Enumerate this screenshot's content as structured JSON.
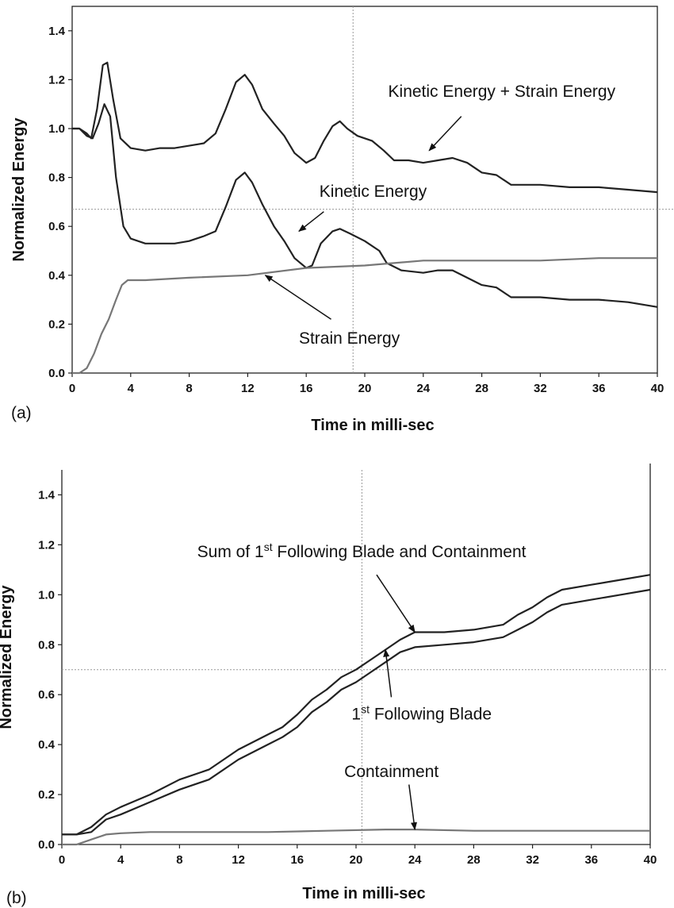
{
  "chart_data": [
    {
      "panel_label": "(a)",
      "type": "line",
      "xlabel": "Time in milli-sec",
      "ylabel": "Normalized Energy",
      "xlim": [
        0,
        40
      ],
      "ylim": [
        0,
        1.5
      ],
      "xticks": [
        "0",
        "4",
        "8",
        "12",
        "16",
        "20",
        "24",
        "28",
        "32",
        "36",
        "40"
      ],
      "yticks": [
        "0.0",
        "0.2",
        "0.4",
        "0.6",
        "0.8",
        "1.0",
        "1.2",
        "1.4"
      ],
      "grid": false,
      "ref_x": 19.2,
      "ref_y": 0.67,
      "annotations": [
        {
          "text": "Kinetic Energy + Strain Energy",
          "x": 21.6,
          "y": 1.13,
          "arrow_from": [
            26.6,
            1.05
          ],
          "arrow_to": [
            24.4,
            0.91
          ]
        },
        {
          "text": "Kinetic Energy",
          "x": 16.9,
          "y": 0.72,
          "arrow_from": [
            17.2,
            0.66
          ],
          "arrow_to": [
            15.5,
            0.58
          ]
        },
        {
          "text": "Strain Energy",
          "x": 15.5,
          "y": 0.12,
          "arrow_from": [
            17.7,
            0.22
          ],
          "arrow_to": [
            13.2,
            0.4
          ]
        }
      ],
      "series": [
        {
          "color": "#222222",
          "points": [
            [
              0,
              1.0
            ],
            [
              0.5,
              1.0
            ],
            [
              1,
              0.98
            ],
            [
              1.3,
              0.96
            ],
            [
              1.7,
              1.08
            ],
            [
              2.1,
              1.26
            ],
            [
              2.4,
              1.27
            ],
            [
              2.8,
              1.12
            ],
            [
              3.3,
              0.96
            ],
            [
              4,
              0.92
            ],
            [
              5,
              0.91
            ],
            [
              6,
              0.92
            ],
            [
              7,
              0.92
            ],
            [
              8,
              0.93
            ],
            [
              9,
              0.94
            ],
            [
              9.8,
              0.98
            ],
            [
              10.5,
              1.08
            ],
            [
              11.2,
              1.19
            ],
            [
              11.8,
              1.22
            ],
            [
              12.3,
              1.18
            ],
            [
              13,
              1.08
            ],
            [
              13.8,
              1.02
            ],
            [
              14.5,
              0.97
            ],
            [
              15.2,
              0.9
            ],
            [
              16,
              0.86
            ],
            [
              16.6,
              0.88
            ],
            [
              17.2,
              0.95
            ],
            [
              17.8,
              1.01
            ],
            [
              18.3,
              1.03
            ],
            [
              18.8,
              1.0
            ],
            [
              19.5,
              0.97
            ],
            [
              20.5,
              0.95
            ],
            [
              21.3,
              0.91
            ],
            [
              22,
              0.87
            ],
            [
              23,
              0.87
            ],
            [
              24,
              0.86
            ],
            [
              25,
              0.87
            ],
            [
              26,
              0.88
            ],
            [
              27,
              0.86
            ],
            [
              28,
              0.82
            ],
            [
              29,
              0.81
            ],
            [
              30,
              0.77
            ],
            [
              32,
              0.77
            ],
            [
              34,
              0.76
            ],
            [
              36,
              0.76
            ],
            [
              38,
              0.75
            ],
            [
              40,
              0.74
            ]
          ]
        },
        {
          "color": "#222222",
          "points": [
            [
              0,
              1.0
            ],
            [
              0.5,
              1.0
            ],
            [
              1,
              0.97
            ],
            [
              1.4,
              0.96
            ],
            [
              1.8,
              1.02
            ],
            [
              2.2,
              1.1
            ],
            [
              2.6,
              1.05
            ],
            [
              3,
              0.8
            ],
            [
              3.5,
              0.6
            ],
            [
              4,
              0.55
            ],
            [
              5,
              0.53
            ],
            [
              6,
              0.53
            ],
            [
              7,
              0.53
            ],
            [
              8,
              0.54
            ],
            [
              9,
              0.56
            ],
            [
              9.8,
              0.58
            ],
            [
              10.5,
              0.68
            ],
            [
              11.2,
              0.79
            ],
            [
              11.8,
              0.82
            ],
            [
              12.3,
              0.78
            ],
            [
              13,
              0.69
            ],
            [
              13.8,
              0.6
            ],
            [
              14.5,
              0.54
            ],
            [
              15.2,
              0.47
            ],
            [
              16,
              0.43
            ],
            [
              16.4,
              0.44
            ],
            [
              17,
              0.53
            ],
            [
              17.8,
              0.58
            ],
            [
              18.3,
              0.59
            ],
            [
              19,
              0.57
            ],
            [
              20,
              0.54
            ],
            [
              21,
              0.5
            ],
            [
              21.5,
              0.45
            ],
            [
              22.5,
              0.42
            ],
            [
              24,
              0.41
            ],
            [
              25,
              0.42
            ],
            [
              26,
              0.42
            ],
            [
              27,
              0.39
            ],
            [
              28,
              0.36
            ],
            [
              29,
              0.35
            ],
            [
              30,
              0.31
            ],
            [
              32,
              0.31
            ],
            [
              34,
              0.3
            ],
            [
              36,
              0.3
            ],
            [
              38,
              0.29
            ],
            [
              40,
              0.27
            ]
          ]
        },
        {
          "color": "#777777",
          "points": [
            [
              0,
              0.0
            ],
            [
              0.5,
              0.0
            ],
            [
              1,
              0.02
            ],
            [
              1.5,
              0.08
            ],
            [
              2,
              0.16
            ],
            [
              2.5,
              0.22
            ],
            [
              3,
              0.3
            ],
            [
              3.4,
              0.36
            ],
            [
              3.8,
              0.38
            ],
            [
              5,
              0.38
            ],
            [
              8,
              0.39
            ],
            [
              12,
              0.4
            ],
            [
              16,
              0.43
            ],
            [
              20,
              0.44
            ],
            [
              24,
              0.46
            ],
            [
              28,
              0.46
            ],
            [
              32,
              0.46
            ],
            [
              36,
              0.47
            ],
            [
              40,
              0.47
            ]
          ]
        }
      ]
    },
    {
      "panel_label": "(b)",
      "type": "line",
      "xlabel": "Time in milli-sec",
      "ylabel": "Normalized Energy",
      "xlim": [
        0,
        40
      ],
      "ylim": [
        0,
        1.5
      ],
      "xticks": [
        "0",
        "4",
        "8",
        "12",
        "16",
        "20",
        "24",
        "28",
        "32",
        "36",
        "40"
      ],
      "yticks": [
        "0.0",
        "0.2",
        "0.4",
        "0.6",
        "0.8",
        "1.0",
        "1.2",
        "1.4"
      ],
      "grid": false,
      "ref_x": 20.4,
      "ref_y": 0.7,
      "annotations": [
        {
          "text_main": "Sum of 1",
          "text_sup": "st",
          "text_tail": " Following Blade and Containment",
          "x": 9.2,
          "y": 1.15,
          "arrow_from": [
            21.4,
            1.08
          ],
          "arrow_to": [
            24.0,
            0.85
          ]
        },
        {
          "text_main": "1",
          "text_sup": "st",
          "text_tail": " Following Blade",
          "x": 19.7,
          "y": 0.5,
          "arrow_from": [
            22.4,
            0.59
          ],
          "arrow_to": [
            22.0,
            0.78
          ]
        },
        {
          "text_main": "Containment",
          "text_sup": "",
          "text_tail": "",
          "x": 19.2,
          "y": 0.27,
          "arrow_from": [
            23.6,
            0.24
          ],
          "arrow_to": [
            24.0,
            0.06
          ]
        }
      ],
      "series": [
        {
          "color": "#222222",
          "points": [
            [
              0,
              0.04
            ],
            [
              1,
              0.04
            ],
            [
              2,
              0.07
            ],
            [
              3,
              0.12
            ],
            [
              4,
              0.15
            ],
            [
              6,
              0.2
            ],
            [
              8,
              0.26
            ],
            [
              10,
              0.3
            ],
            [
              12,
              0.38
            ],
            [
              14,
              0.44
            ],
            [
              15,
              0.47
            ],
            [
              16,
              0.52
            ],
            [
              17,
              0.58
            ],
            [
              18,
              0.62
            ],
            [
              19,
              0.67
            ],
            [
              20,
              0.7
            ],
            [
              21,
              0.74
            ],
            [
              22,
              0.78
            ],
            [
              23,
              0.82
            ],
            [
              24,
              0.85
            ],
            [
              26,
              0.85
            ],
            [
              28,
              0.86
            ],
            [
              30,
              0.88
            ],
            [
              31,
              0.92
            ],
            [
              32,
              0.95
            ],
            [
              33,
              0.99
            ],
            [
              34,
              1.02
            ],
            [
              36,
              1.04
            ],
            [
              38,
              1.06
            ],
            [
              40,
              1.08
            ]
          ]
        },
        {
          "color": "#222222",
          "points": [
            [
              0,
              0.04
            ],
            [
              1,
              0.04
            ],
            [
              2,
              0.05
            ],
            [
              3,
              0.1
            ],
            [
              4,
              0.12
            ],
            [
              6,
              0.17
            ],
            [
              8,
              0.22
            ],
            [
              10,
              0.26
            ],
            [
              12,
              0.34
            ],
            [
              14,
              0.4
            ],
            [
              15,
              0.43
            ],
            [
              16,
              0.47
            ],
            [
              17,
              0.53
            ],
            [
              18,
              0.57
            ],
            [
              19,
              0.62
            ],
            [
              20,
              0.65
            ],
            [
              21,
              0.69
            ],
            [
              22,
              0.73
            ],
            [
              23,
              0.77
            ],
            [
              24,
              0.79
            ],
            [
              26,
              0.8
            ],
            [
              28,
              0.81
            ],
            [
              30,
              0.83
            ],
            [
              31,
              0.86
            ],
            [
              32,
              0.89
            ],
            [
              33,
              0.93
            ],
            [
              34,
              0.96
            ],
            [
              36,
              0.98
            ],
            [
              38,
              1.0
            ],
            [
              40,
              1.02
            ]
          ]
        },
        {
          "color": "#777777",
          "points": [
            [
              0,
              0.0
            ],
            [
              1,
              0.0
            ],
            [
              1.5,
              0.01
            ],
            [
              2,
              0.02
            ],
            [
              2.5,
              0.03
            ],
            [
              3,
              0.04
            ],
            [
              4,
              0.045
            ],
            [
              6,
              0.05
            ],
            [
              10,
              0.05
            ],
            [
              14,
              0.05
            ],
            [
              18,
              0.055
            ],
            [
              22,
              0.06
            ],
            [
              24,
              0.06
            ],
            [
              28,
              0.055
            ],
            [
              32,
              0.055
            ],
            [
              36,
              0.055
            ],
            [
              40,
              0.055
            ]
          ]
        }
      ]
    }
  ]
}
